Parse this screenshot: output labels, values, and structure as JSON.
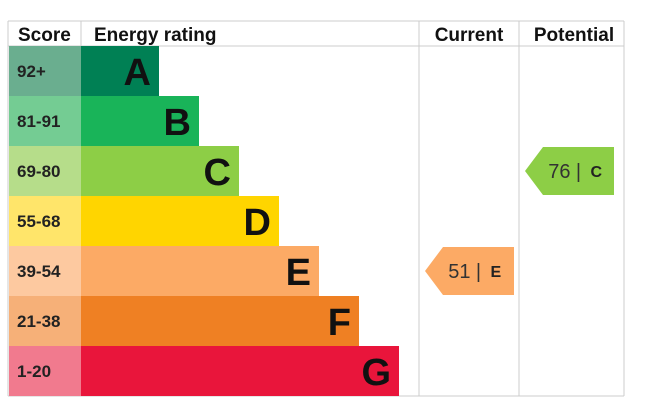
{
  "chart_data": {
    "type": "table",
    "headers": {
      "score": "Score",
      "rating": "Energy rating",
      "current": "Current",
      "potential": "Potential"
    },
    "bands": [
      {
        "letter": "A",
        "range": "92+",
        "color": "#008054",
        "score_bg": "#6aae8f"
      },
      {
        "letter": "B",
        "range": "81-91",
        "color": "#19b459",
        "score_bg": "#74cc93"
      },
      {
        "letter": "C",
        "range": "69-80",
        "color": "#8dce46",
        "score_bg": "#b6dd8a"
      },
      {
        "letter": "D",
        "range": "55-68",
        "color": "#ffd500",
        "score_bg": "#ffe56a"
      },
      {
        "letter": "E",
        "range": "39-54",
        "color": "#fcaa65",
        "score_bg": "#fdc9a0"
      },
      {
        "letter": "F",
        "range": "21-38",
        "color": "#ef8023",
        "score_bg": "#f6b078"
      },
      {
        "letter": "G",
        "range": "1-20",
        "color": "#e9153b",
        "score_bg": "#f17a8e"
      }
    ],
    "current": {
      "value": 51,
      "letter": "E",
      "color": "#fcaa65"
    },
    "potential": {
      "value": 76,
      "letter": "C",
      "color": "#8dce46"
    }
  }
}
